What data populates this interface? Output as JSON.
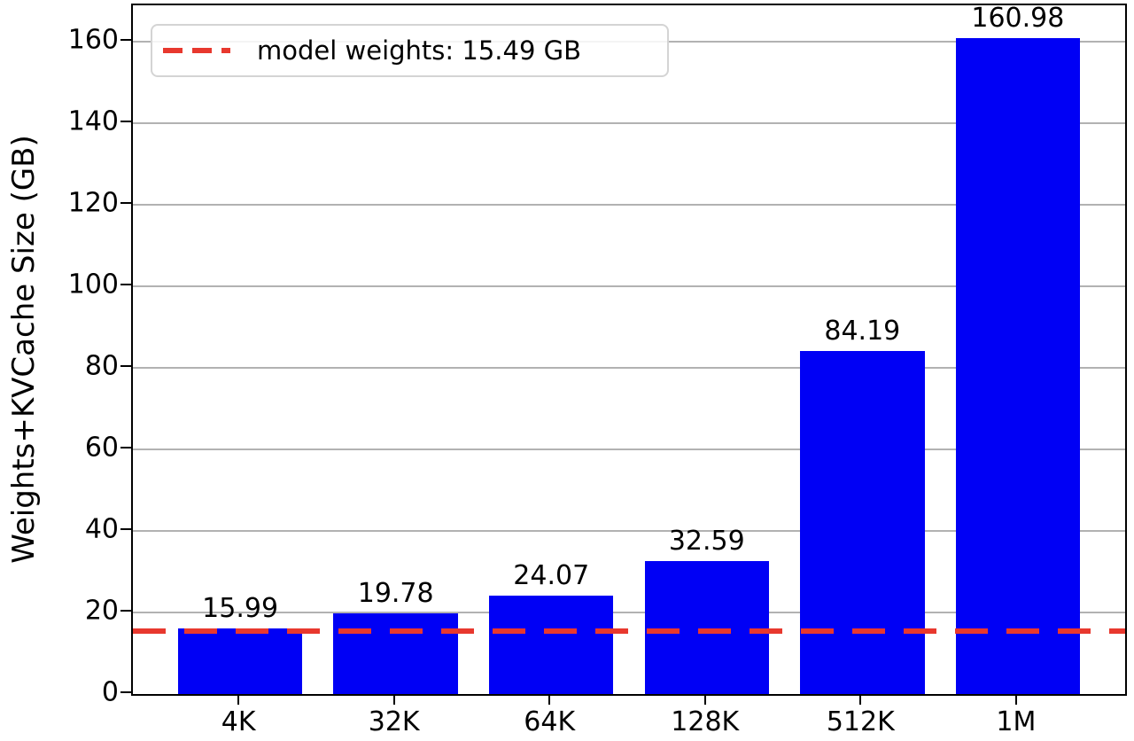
{
  "chart_data": {
    "type": "bar",
    "title": "",
    "categories": [
      "4K",
      "32K",
      "64K",
      "128K",
      "512K",
      "1M"
    ],
    "values": [
      15.99,
      19.78,
      24.07,
      32.59,
      84.19,
      160.98
    ],
    "bar_labels": [
      "15.99",
      "19.78",
      "24.07",
      "32.59",
      "84.19",
      "160.98"
    ],
    "xlabel": "",
    "ylabel": "Weights+KVCache Size (GB)",
    "ylim": [
      0,
      169
    ],
    "yticks": [
      0,
      20,
      40,
      60,
      80,
      100,
      120,
      140,
      160
    ],
    "grid": true,
    "legend": {
      "position": "upper left",
      "entries": [
        {
          "label": "model weights: 15.49 GB",
          "style": "dashed",
          "color": "#e8382e"
        }
      ]
    },
    "threshold_line": {
      "value": 15.49,
      "style": "dashed",
      "color": "#e8382e"
    },
    "colors": {
      "bar": "#0000f5",
      "threshold": "#e8382e",
      "grid": "#b2b2b2",
      "axis": "#000000",
      "text": "#000000"
    }
  }
}
